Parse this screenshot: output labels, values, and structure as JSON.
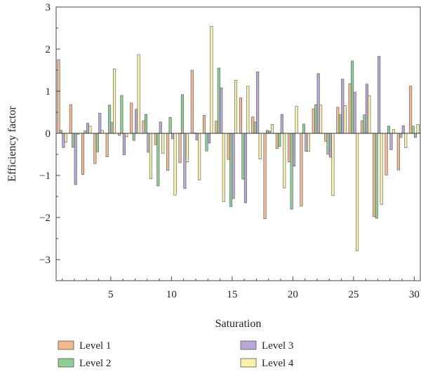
{
  "chart_data": {
    "type": "bar",
    "title": "",
    "xlabel": "Saturation",
    "ylabel": "Efficiency factor",
    "xlim": [
      0.5,
      30.5
    ],
    "ylim": [
      -3.5,
      3
    ],
    "x_ticks": [
      5,
      10,
      15,
      20,
      25,
      30
    ],
    "y_ticks": [
      -3,
      -2,
      -1,
      0,
      1,
      2,
      3
    ],
    "legend_position": "bottom",
    "categories": [
      1,
      2,
      3,
      4,
      5,
      6,
      7,
      8,
      9,
      10,
      11,
      12,
      13,
      14,
      15,
      16,
      17,
      18,
      19,
      20,
      21,
      22,
      23,
      24,
      25,
      26,
      27,
      28,
      29,
      30
    ],
    "series": [
      {
        "name": "Level 1",
        "color": "#f5b78e",
        "values": [
          1.75,
          0.68,
          -0.98,
          -0.72,
          -0.56,
          -0.05,
          0.72,
          0.3,
          -0.27,
          -0.88,
          -0.7,
          1.5,
          0.43,
          0.29,
          -0.62,
          0.84,
          0.39,
          -2.03,
          -0.36,
          -0.68,
          -1.73,
          0.58,
          -0.19,
          0.62,
          1.18,
          0.3,
          -1.98,
          -0.99,
          -0.87,
          1.12
        ]
      },
      {
        "name": "Level 2",
        "color": "#8fcf95",
        "values": [
          0.07,
          -0.33,
          0.06,
          -0.44,
          0.67,
          0.9,
          -0.17,
          0.45,
          -1.25,
          0.38,
          0.92,
          0.01,
          -0.42,
          1.55,
          -1.74,
          -1.09,
          0.27,
          0.07,
          -0.31,
          -1.8,
          0.22,
          0.68,
          -0.5,
          0.44,
          1.72,
          0.44,
          -2.02,
          0.17,
          -0.1,
          0.17
        ]
      },
      {
        "name": "Level 3",
        "color": "#b9a7d8",
        "values": [
          -0.34,
          -1.22,
          0.24,
          0.48,
          0.26,
          -0.51,
          0.57,
          -0.45,
          0.27,
          -0.13,
          -1.31,
          -0.16,
          -0.23,
          1.08,
          -1.55,
          -1.65,
          1.46,
          0.05,
          0.45,
          -0.78,
          -0.43,
          1.42,
          -0.57,
          1.29,
          0.98,
          1.17,
          1.83,
          -0.39,
          0.18,
          -0.1
        ]
      },
      {
        "name": "Level 4",
        "color": "#f6f2a6",
        "values": [
          -0.21,
          -0.02,
          0.17,
          0.07,
          1.53,
          -0.08,
          1.87,
          -1.08,
          -0.48,
          -1.47,
          -0.68,
          -1.11,
          2.54,
          -1.62,
          1.26,
          1.12,
          -0.61,
          0.21,
          -1.3,
          0.64,
          -0.43,
          0.67,
          -1.48,
          0.66,
          -2.79,
          0.89,
          -1.69,
          0.09,
          -0.34,
          0.21
        ]
      }
    ]
  }
}
